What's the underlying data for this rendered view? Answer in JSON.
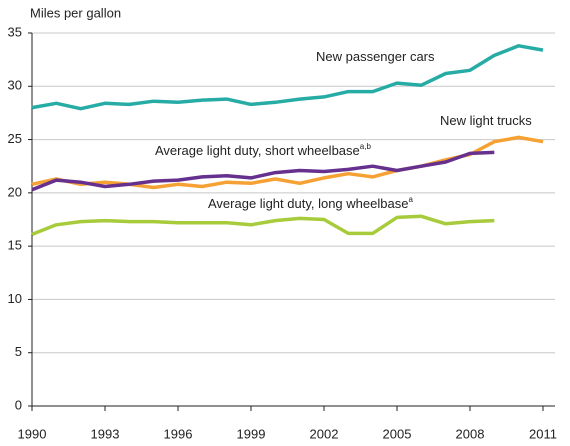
{
  "chart_data": {
    "type": "line",
    "y_axis_label": "Miles per gallon",
    "x": [
      1990,
      1991,
      1992,
      1993,
      1994,
      1995,
      1996,
      1997,
      1998,
      1999,
      2000,
      2001,
      2002,
      2003,
      2004,
      2005,
      2006,
      2007,
      2008,
      2009,
      2010,
      2011
    ],
    "xlim": [
      1990,
      2011
    ],
    "xticks": [
      1990,
      1993,
      1996,
      1999,
      2002,
      2005,
      2008,
      2011
    ],
    "ylim": [
      0,
      35
    ],
    "yticks": [
      0,
      5,
      10,
      15,
      20,
      25,
      30,
      35
    ],
    "grid": true,
    "series": [
      {
        "name": "New passenger cars",
        "color": "#27aca5",
        "values": [
          28.0,
          28.4,
          27.9,
          28.4,
          28.3,
          28.6,
          28.5,
          28.7,
          28.8,
          28.3,
          28.5,
          28.8,
          29.0,
          29.5,
          29.5,
          30.3,
          30.1,
          31.2,
          31.5,
          32.9,
          33.8,
          33.4
        ]
      },
      {
        "name": "New light trucks",
        "color": "#f6a133",
        "values": [
          20.8,
          21.3,
          20.8,
          21.0,
          20.8,
          20.5,
          20.8,
          20.6,
          21.0,
          20.9,
          21.3,
          20.9,
          21.4,
          21.8,
          21.5,
          22.1,
          22.5,
          23.1,
          23.6,
          24.8,
          25.2,
          24.8
        ]
      },
      {
        "name": "Average light duty, short wheelbase",
        "superscript": "a,b",
        "color": "#66308f",
        "values": [
          20.3,
          21.2,
          21.0,
          20.6,
          20.8,
          21.1,
          21.2,
          21.5,
          21.6,
          21.4,
          21.9,
          22.1,
          22.0,
          22.2,
          22.5,
          22.1,
          22.5,
          22.9,
          23.7,
          23.8,
          null,
          null
        ]
      },
      {
        "name": "Average light duty, long wheelbase",
        "superscript": "a",
        "color": "#a7cb3b",
        "values": [
          16.1,
          17.0,
          17.3,
          17.4,
          17.3,
          17.3,
          17.2,
          17.2,
          17.2,
          17.0,
          17.4,
          17.6,
          17.5,
          16.2,
          16.2,
          17.7,
          17.8,
          17.1,
          17.3,
          17.4,
          null,
          null
        ]
      }
    ]
  }
}
